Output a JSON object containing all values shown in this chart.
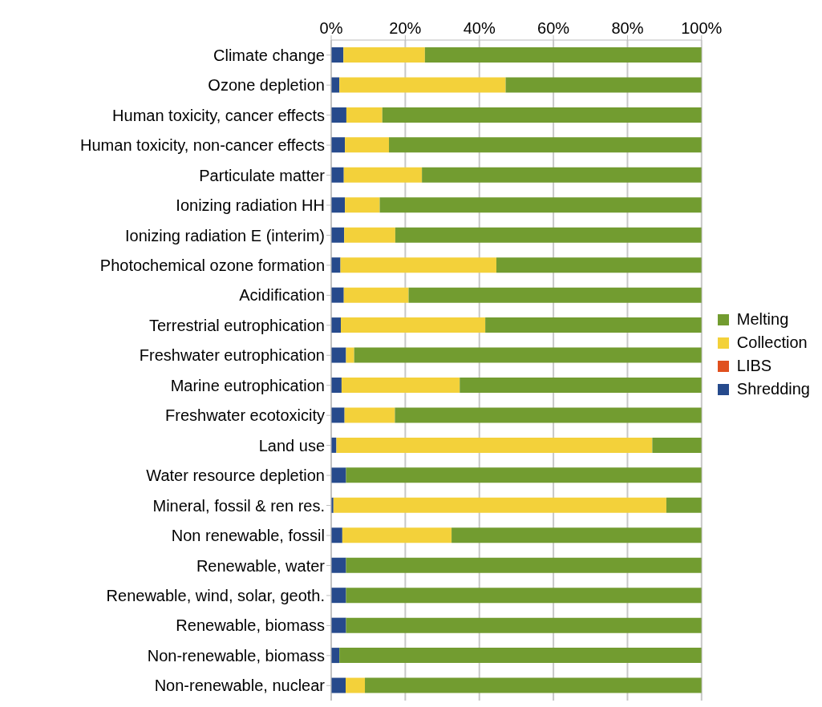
{
  "chart_data": {
    "type": "bar",
    "orientation": "horizontal",
    "stacked": true,
    "legend": "right",
    "grid": "x",
    "categories": [
      "Climate change",
      "Ozone depletion",
      "Human toxicity, cancer effects",
      "Human toxicity, non-cancer effects",
      "Particulate matter",
      "Ionizing radiation HH",
      "Ionizing radiation E (interim)",
      "Photochemical ozone formation",
      "Acidification",
      "Terrestrial eutrophication",
      "Freshwater eutrophication",
      "Marine eutrophication",
      "Freshwater ecotoxicity",
      "Land use",
      "Water resource depletion",
      "Mineral, fossil & ren res.",
      "Non renewable, fossil",
      "Renewable, water",
      "Renewable, wind, solar, geoth.",
      "Renewable, biomass",
      "Non-renewable, biomass",
      "Non-renewable, nuclear"
    ],
    "xlim": [
      0,
      100
    ],
    "xticks": [
      {
        "value": 0,
        "label": "0%"
      },
      {
        "value": 20,
        "label": "20%"
      },
      {
        "value": 40,
        "label": "40%"
      },
      {
        "value": 60,
        "label": "60%"
      },
      {
        "value": 80,
        "label": "80%"
      },
      {
        "value": 100,
        "label": "100%"
      }
    ],
    "series": [
      {
        "name": "Shredding",
        "color": "#264a8c",
        "values": [
          3.3,
          2.2,
          4.1,
          3.7,
          3.4,
          3.7,
          3.5,
          2.5,
          3.4,
          2.6,
          4.0,
          2.8,
          3.6,
          1.4,
          4.0,
          0.6,
          3.0,
          4.0,
          4.0,
          4.0,
          2.2,
          3.9
        ]
      },
      {
        "name": "LIBS",
        "color": "#e0501e",
        "values": [
          0,
          0,
          0,
          0,
          0,
          0,
          0,
          0,
          0,
          0,
          0,
          0,
          0,
          0,
          0,
          0,
          0,
          0,
          0,
          0,
          0,
          0
        ]
      },
      {
        "name": "Collection",
        "color": "#f3d13a",
        "values": [
          22.0,
          44.9,
          9.7,
          11.9,
          21.1,
          9.4,
          13.8,
          42.1,
          17.5,
          39.0,
          2.2,
          31.9,
          13.6,
          85.3,
          0,
          89.9,
          29.5,
          0,
          0,
          0,
          0,
          5.2
        ]
      },
      {
        "name": "Melting",
        "color": "#729c30",
        "values": [
          74.7,
          52.9,
          86.2,
          84.4,
          75.5,
          86.9,
          82.7,
          55.4,
          79.1,
          58.4,
          93.8,
          65.3,
          82.8,
          13.3,
          96.0,
          9.5,
          67.5,
          96.0,
          96.0,
          96.0,
          97.8,
          90.9
        ]
      }
    ]
  }
}
